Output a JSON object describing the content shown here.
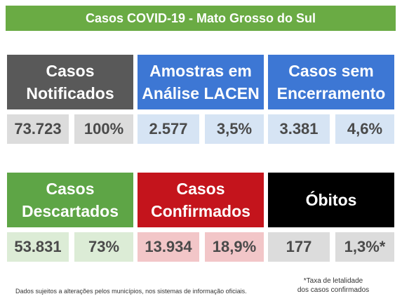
{
  "title": "Casos COVID-19 - Mato Grosso do Sul",
  "colors": {
    "banner": "#6aab44",
    "gray": "#595959",
    "blue": "#3d77d4",
    "green": "#5ea546",
    "red": "#c4141c",
    "black": "#000000",
    "gray_light": "#dcdcdc",
    "blue_light": "#d6e4f4",
    "green_light": "#dcecd6",
    "red_light": "#f2c6c8"
  },
  "cards": [
    {
      "label": "Casos\nNotificados",
      "value": "73.723",
      "percent": "100%"
    },
    {
      "label": "Amostras em\nAnálise LACEN",
      "value": "2.577",
      "percent": "3,5%"
    },
    {
      "label": "Casos sem\nEncerramento",
      "value": "3.381",
      "percent": "4,6%"
    },
    {
      "label": "Casos\nDescartados",
      "value": "53.831",
      "percent": "73%"
    },
    {
      "label": "Casos\nConfirmados",
      "value": "13.934",
      "percent": "18,9%"
    },
    {
      "label": "Óbitos",
      "value": "177",
      "percent": "1,3%*"
    }
  ],
  "footnote_left": "Dados sujeitos a alterações pelos municípios, nos sistemas de informação oficiais.",
  "footnote_right": {
    "line1": "*Taxa de letalidade",
    "line2": "dos casos confirmados"
  }
}
